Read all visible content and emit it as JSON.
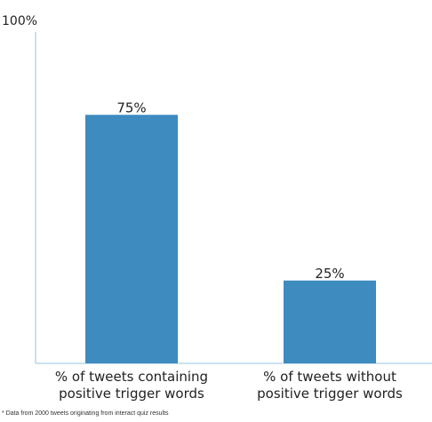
{
  "chart_data": {
    "type": "bar",
    "categories": [
      [
        "% of tweets containing",
        "positive trigger words"
      ],
      [
        "% of tweets without",
        "positive trigger words"
      ]
    ],
    "values": [
      75,
      25
    ],
    "value_labels": [
      "75%",
      "25%"
    ],
    "ylim": [
      0,
      100
    ],
    "y_tick_labels": [
      "100%"
    ],
    "grid": false,
    "legend": "none",
    "bar_color": "#3d8bbf",
    "axis_color": "#b9d7ea"
  },
  "footnote": "* Data from 2000 tweets originating from interact quiz results"
}
